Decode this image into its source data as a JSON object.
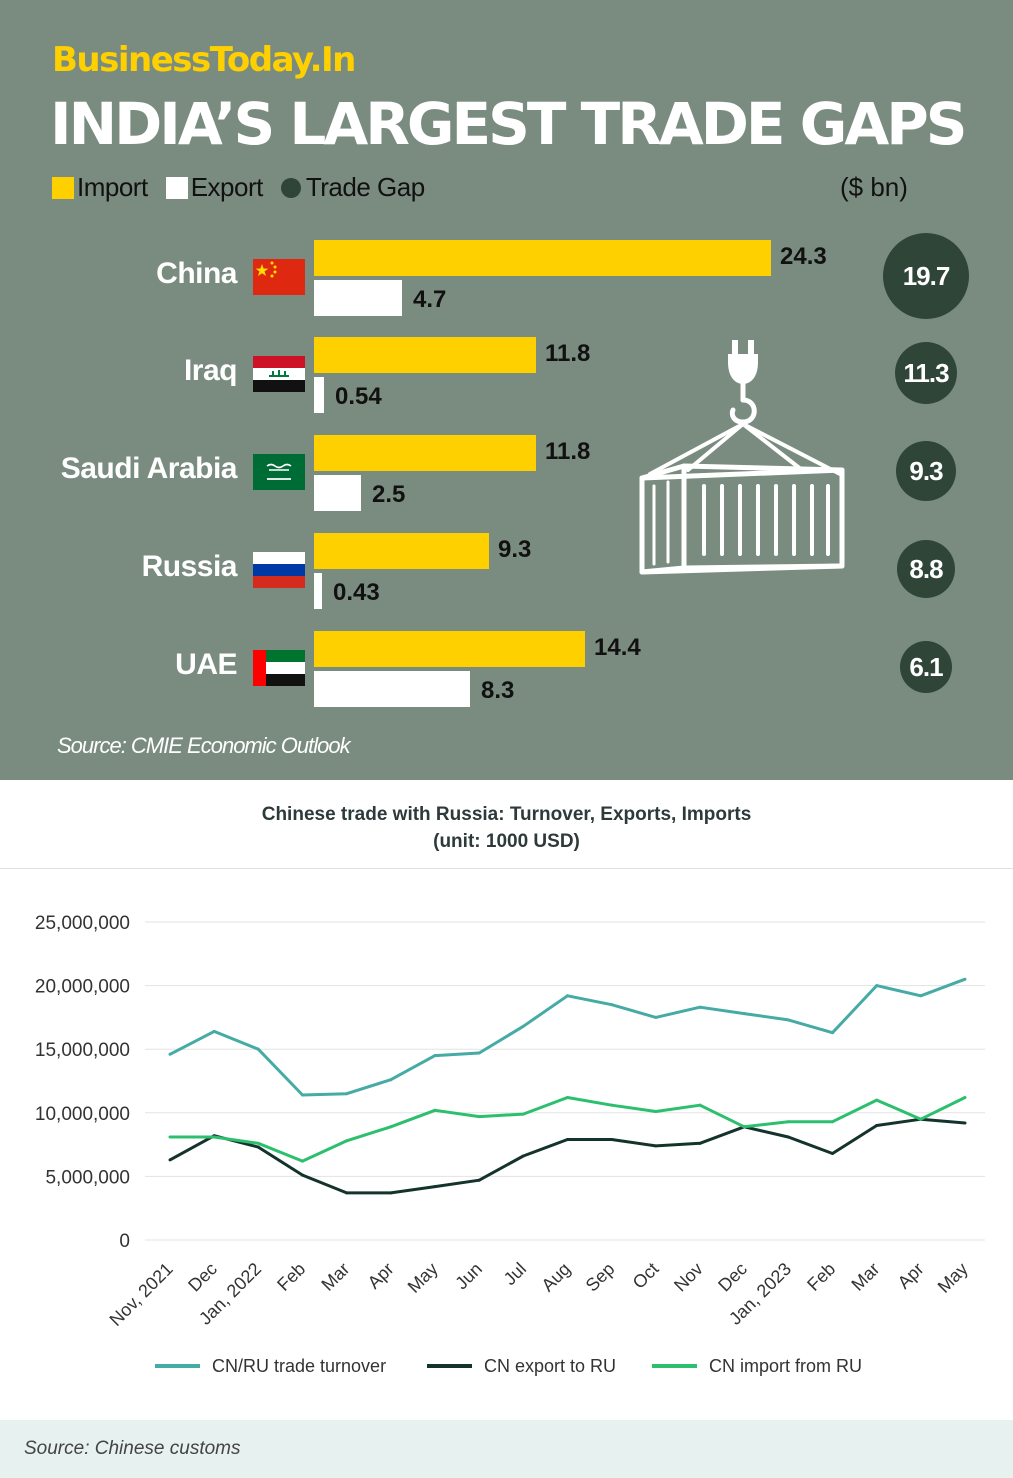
{
  "brand": {
    "text": "BusinessToday.In",
    "color": "#ffd000"
  },
  "headline": "INDIA’S LARGEST TRADE GAPS",
  "legend": {
    "import": "Import",
    "export": "Export",
    "gap": "Trade Gap",
    "unit": "($ bn)"
  },
  "colors": {
    "panel_bg": "#7a8c7f",
    "import": "#ffd000",
    "export": "#ffffff",
    "gap": "#2f4538",
    "turnover": "#45aba4",
    "export_ru": "#14332c",
    "import_ru": "#2bbf6e"
  },
  "bar_chart_source": "Source: CMIE Economic Outlook",
  "line_chart": {
    "title": "Chinese trade with Russia: Turnover, Exports, Imports",
    "subtitle": "(unit: 1000 USD)",
    "source": "Source: Chinese customs"
  },
  "chart_data": [
    {
      "type": "bar",
      "orientation": "horizontal",
      "title": "INDIA’S LARGEST TRADE GAPS",
      "unit": "($ bn)",
      "categories": [
        "China",
        "Iraq",
        "Saudi Arabia",
        "Russia",
        "UAE"
      ],
      "flags": [
        "china-flag-icon",
        "iraq-flag-icon",
        "saudi-arabia-flag-icon",
        "russia-flag-icon",
        "uae-flag-icon"
      ],
      "series": [
        {
          "name": "Import",
          "values": [
            24.3,
            11.8,
            11.8,
            9.3,
            14.4
          ],
          "labels": [
            "24.3",
            "11.8",
            "11.8",
            "9.3",
            "14.4"
          ]
        },
        {
          "name": "Export",
          "values": [
            4.7,
            0.54,
            2.5,
            0.43,
            8.3
          ],
          "labels": [
            "4.7",
            "0.54",
            "2.5",
            "0.43",
            "8.3"
          ]
        },
        {
          "name": "Trade Gap",
          "values": [
            19.7,
            11.3,
            9.3,
            8.8,
            6.1
          ],
          "labels": [
            "19.7",
            "11.3",
            "9.3",
            "8.8",
            "6.1"
          ]
        }
      ],
      "legend": "top-left",
      "illustration": "shipping-container-icon"
    },
    {
      "type": "line",
      "title": "Chinese trade with Russia: Turnover, Exports, Imports",
      "subtitle": "(unit: 1000 USD)",
      "x": [
        "Nov, 2021",
        "Dec",
        "Jan, 2022",
        "Feb",
        "Mar",
        "Apr",
        "May",
        "Jun",
        "Jul",
        "Aug",
        "Sep",
        "Oct",
        "Nov",
        "Dec",
        "Jan, 2023",
        "Feb",
        "Mar",
        "Apr",
        "May"
      ],
      "ylim": [
        0,
        25000000
      ],
      "yticks": [
        0,
        5000000,
        10000000,
        15000000,
        20000000,
        25000000
      ],
      "ytick_labels": [
        "0",
        "5,000,000",
        "10,000,000",
        "15,000,000",
        "20,000,000",
        "25,000,000"
      ],
      "grid": true,
      "legend": "bottom",
      "series": [
        {
          "name": "CN/RU trade turnover",
          "values": [
            14600000,
            16400000,
            15000000,
            11400000,
            11500000,
            12600000,
            14500000,
            14700000,
            16800000,
            19200000,
            18500000,
            17500000,
            18300000,
            17800000,
            17300000,
            16300000,
            20000000,
            19200000,
            20500000
          ]
        },
        {
          "name": "CN export to RU",
          "values": [
            6300000,
            8200000,
            7300000,
            5100000,
            3700000,
            3700000,
            4200000,
            4700000,
            6600000,
            7900000,
            7900000,
            7400000,
            7600000,
            8900000,
            8100000,
            6800000,
            9000000,
            9500000,
            9200000
          ]
        },
        {
          "name": "CN import from RU",
          "values": [
            8100000,
            8100000,
            7600000,
            6200000,
            7800000,
            8900000,
            10200000,
            9700000,
            9900000,
            11200000,
            10600000,
            10100000,
            10600000,
            8900000,
            9300000,
            9300000,
            11000000,
            9500000,
            11200000
          ]
        }
      ]
    }
  ]
}
